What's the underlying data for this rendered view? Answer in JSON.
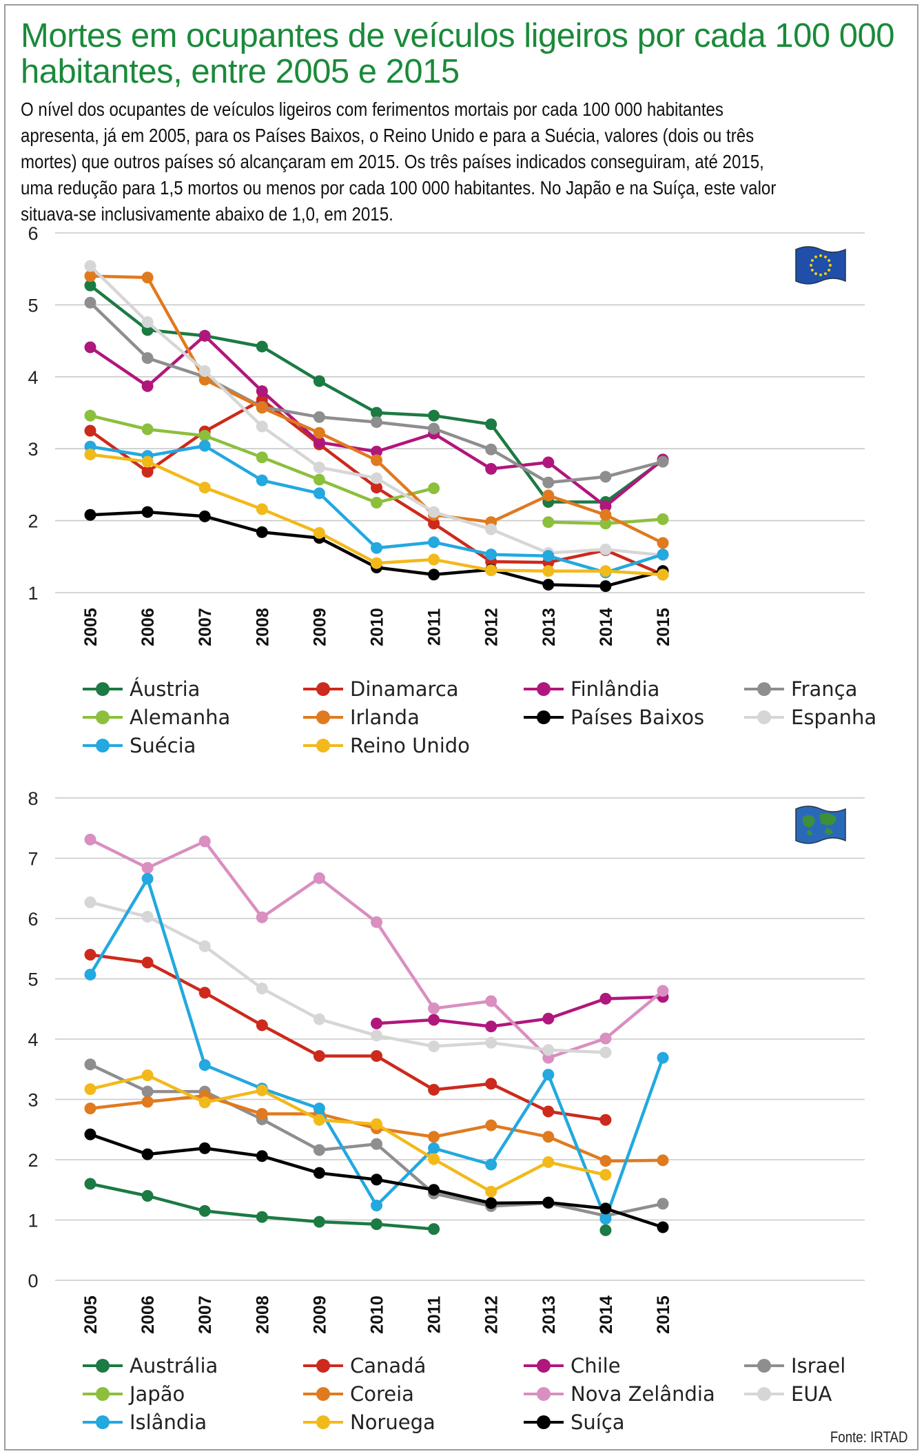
{
  "title": "Mortes em ocupantes de veículos ligeiros por cada 100 000 habitantes, entre 2005 e 2015",
  "intro": "O nível dos ocupantes de veículos ligeiros com ferimentos mortais por cada 100 000 habitantes apresenta, já em 2005, para os Países Baixos, o Reino Unido e para a Suécia, valores (dois ou três mortes) que outros países só alcançaram em 2015. Os três países indicados conseguiram, até 2015, uma redução para 1,5 mortos ou menos por cada 100 000 habitantes. No Japão e na Suíça, este valor situava-se inclusivamente abaixo de 1,0, em 2015.",
  "source": "Fonte: IRTAD",
  "chart_data": [
    {
      "type": "line",
      "region": "EU",
      "icon": "eu-flag-icon",
      "categories": [
        "2005",
        "2006",
        "2007",
        "2008",
        "2009",
        "2010",
        "2011",
        "2012",
        "2013",
        "2014",
        "2015"
      ],
      "ylim": [
        1,
        6
      ],
      "yticks": [
        "1",
        "2",
        "3",
        "4",
        "5",
        "6"
      ],
      "series": [
        {
          "name": "Áustria",
          "color": "#1c7a43",
          "values": [
            5.27,
            4.65,
            4.57,
            4.42,
            3.94,
            3.5,
            3.46,
            3.34,
            2.26,
            2.26,
            2.84
          ]
        },
        {
          "name": "Dinamarca",
          "color": "#cc2a1c",
          "values": [
            3.25,
            2.68,
            3.24,
            3.68,
            3.06,
            2.46,
            1.96,
            1.43,
            1.42,
            1.59,
            1.25
          ]
        },
        {
          "name": "Finlândia",
          "color": "#b0177c",
          "values": [
            4.41,
            3.87,
            4.57,
            3.8,
            3.09,
            2.96,
            3.21,
            2.72,
            2.81,
            2.2,
            2.85
          ]
        },
        {
          "name": "França",
          "color": "#8e8e8e",
          "values": [
            5.03,
            4.26,
            4.0,
            3.58,
            3.44,
            3.37,
            3.28,
            2.99,
            2.53,
            2.61,
            2.82
          ]
        },
        {
          "name": "Alemanha",
          "color": "#8cbf3c",
          "values": [
            3.46,
            3.27,
            3.18,
            2.88,
            2.57,
            2.25,
            2.45,
            null,
            1.98,
            1.96,
            2.02
          ]
        },
        {
          "name": "Irlanda",
          "color": "#e07a1f",
          "values": [
            5.4,
            5.38,
            3.96,
            3.57,
            3.22,
            2.84,
            2.08,
            1.98,
            2.35,
            2.08,
            1.69
          ]
        },
        {
          "name": "Países Baixos",
          "color": "#000000",
          "values": [
            2.08,
            2.12,
            2.06,
            1.84,
            1.76,
            1.35,
            1.25,
            1.32,
            1.11,
            1.09,
            1.3
          ]
        },
        {
          "name": "Espanha",
          "color": "#d6d6d6",
          "values": [
            5.54,
            4.76,
            4.08,
            3.31,
            2.74,
            2.59,
            2.12,
            1.88,
            1.55,
            1.6,
            1.52
          ]
        },
        {
          "name": "Suécia",
          "color": "#23a8e0",
          "values": [
            3.03,
            2.9,
            3.04,
            2.56,
            2.38,
            1.62,
            1.7,
            1.53,
            1.51,
            1.28,
            1.53
          ]
        },
        {
          "name": "Reino Unido",
          "color": "#f2b91a",
          "values": [
            2.92,
            2.82,
            2.46,
            2.16,
            1.83,
            1.41,
            1.46,
            1.31,
            1.3,
            1.3,
            1.25
          ]
        }
      ]
    },
    {
      "type": "line",
      "region": "World",
      "icon": "world-flag-icon",
      "categories": [
        "2005",
        "2006",
        "2007",
        "2008",
        "2009",
        "2010",
        "2011",
        "2012",
        "2013",
        "2014",
        "2015"
      ],
      "ylim": [
        0,
        8
      ],
      "yticks": [
        "0",
        "1",
        "2",
        "3",
        "4",
        "5",
        "6",
        "7",
        "8"
      ],
      "series": [
        {
          "name": "Austrália",
          "color": "#1c7a43",
          "values": [
            1.6,
            1.4,
            1.15,
            1.05,
            0.97,
            0.93,
            0.85,
            null,
            null,
            0.83,
            null
          ]
        },
        {
          "name": "Canadá",
          "color": "#cc2a1c",
          "values": [
            5.4,
            5.27,
            4.77,
            4.23,
            3.72,
            3.72,
            3.16,
            3.26,
            2.8,
            2.66,
            null
          ]
        },
        {
          "name": "Chile",
          "color": "#b0177c",
          "values": [
            null,
            null,
            null,
            null,
            null,
            4.26,
            4.32,
            4.21,
            4.34,
            4.67,
            4.7
          ]
        },
        {
          "name": "Israel",
          "color": "#8e8e8e",
          "values": [
            3.58,
            3.13,
            3.13,
            2.67,
            2.16,
            2.26,
            1.44,
            1.23,
            1.28,
            1.07,
            1.27
          ]
        },
        {
          "name": "Japão",
          "color": "#8cbf3c",
          "values": [
            null,
            null,
            null,
            null,
            null,
            null,
            null,
            null,
            null,
            null,
            null
          ]
        },
        {
          "name": "Coreia",
          "color": "#e07a1f",
          "values": [
            2.85,
            2.96,
            3.06,
            2.76,
            2.76,
            2.52,
            2.38,
            2.57,
            2.38,
            1.98,
            1.99
          ]
        },
        {
          "name": "Nova Zelândia",
          "color": "#d98fc0",
          "values": [
            7.31,
            6.84,
            7.28,
            6.02,
            6.67,
            5.94,
            4.51,
            4.63,
            3.69,
            4.01,
            4.8
          ]
        },
        {
          "name": "EUA",
          "color": "#d6d6d6",
          "values": [
            6.27,
            6.03,
            5.54,
            4.84,
            4.33,
            4.06,
            3.88,
            3.94,
            3.82,
            3.78,
            null
          ]
        },
        {
          "name": "Islândia",
          "color": "#23a8e0",
          "values": [
            5.07,
            6.66,
            3.57,
            3.18,
            2.85,
            1.24,
            2.19,
            1.92,
            3.41,
            1.02,
            3.69
          ]
        },
        {
          "name": "Noruega",
          "color": "#f2b91a",
          "values": [
            3.17,
            3.4,
            2.95,
            3.15,
            2.66,
            2.59,
            2.01,
            1.47,
            1.96,
            1.75,
            null
          ]
        },
        {
          "name": "Suíça",
          "color": "#000000",
          "values": [
            2.42,
            2.09,
            2.19,
            2.06,
            1.78,
            1.67,
            1.5,
            1.28,
            1.29,
            1.19,
            0.88
          ]
        }
      ]
    }
  ]
}
